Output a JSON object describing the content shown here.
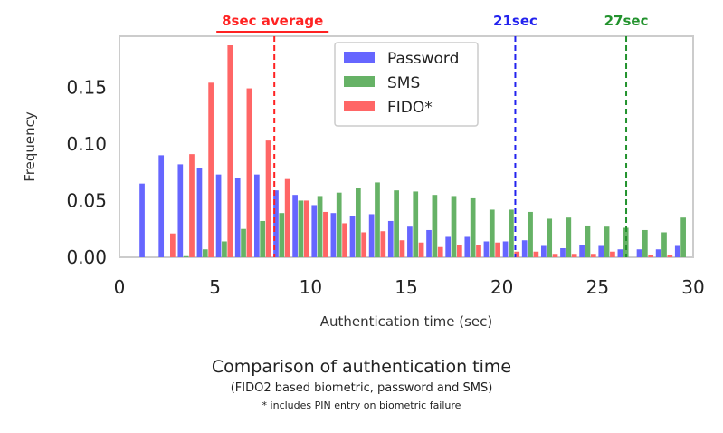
{
  "chart_data": {
    "type": "bar",
    "xlabel": "Authentication time (sec)",
    "ylabel": "Frequency",
    "xlim": [
      0,
      30
    ],
    "ylim": [
      0,
      0.195
    ],
    "xticks": [
      "0",
      "5",
      "10",
      "15",
      "20",
      "25",
      "30"
    ],
    "yticks": [
      "0.00",
      "0.05",
      "0.10",
      "0.15"
    ],
    "bin_starts": [
      1,
      2,
      3,
      4,
      5,
      6,
      7,
      8,
      9,
      10,
      11,
      12,
      13,
      14,
      15,
      16,
      17,
      18,
      19,
      20,
      21,
      22,
      23,
      24,
      25,
      26,
      27,
      28,
      29
    ],
    "bin_width": 1,
    "legend_position": "top-center",
    "series": [
      {
        "name": "Password",
        "color": "#6666ff",
        "values": [
          0.065,
          0.09,
          0.082,
          0.079,
          0.073,
          0.07,
          0.073,
          0.059,
          0.055,
          0.046,
          0.039,
          0.036,
          0.038,
          0.032,
          0.027,
          0.024,
          0.018,
          0.018,
          0.014,
          0.014,
          0.015,
          0.01,
          0.008,
          0.011,
          0.01,
          0.007,
          0.007,
          0.007,
          0.01
        ]
      },
      {
        "name": "SMS",
        "color": "#66b266",
        "values": [
          0,
          0,
          0.001,
          0.007,
          0.014,
          0.025,
          0.032,
          0.039,
          0.05,
          0.054,
          0.057,
          0.061,
          0.066,
          0.059,
          0.058,
          0.055,
          0.054,
          0.052,
          0.042,
          0.042,
          0.04,
          0.034,
          0.035,
          0.028,
          0.027,
          0.026,
          0.024,
          0.022,
          0.035
        ]
      },
      {
        "name": "FIDO*",
        "color": "#ff6666",
        "values": [
          0,
          0.021,
          0.091,
          0.154,
          0.187,
          0.149,
          0.103,
          0.069,
          0.05,
          0.04,
          0.03,
          0.022,
          0.023,
          0.015,
          0.013,
          0.009,
          0.011,
          0.011,
          0.013,
          0.005,
          0.005,
          0.003,
          0.003,
          0.003,
          0.005,
          0,
          0.002,
          0.002,
          0
        ]
      }
    ],
    "reference_lines": [
      {
        "x": 8.1,
        "label": "8sec average",
        "color": "#ff2222"
      },
      {
        "x": 20.7,
        "label": "21sec",
        "color": "#2222ee"
      },
      {
        "x": 26.5,
        "label": "27sec",
        "color": "#22922d"
      }
    ]
  },
  "caption": {
    "title": "Comparison of authentication time",
    "subtitle": "(FIDO2 based biometric, password and SMS)",
    "note": "* includes PIN entry on biometric failure"
  }
}
